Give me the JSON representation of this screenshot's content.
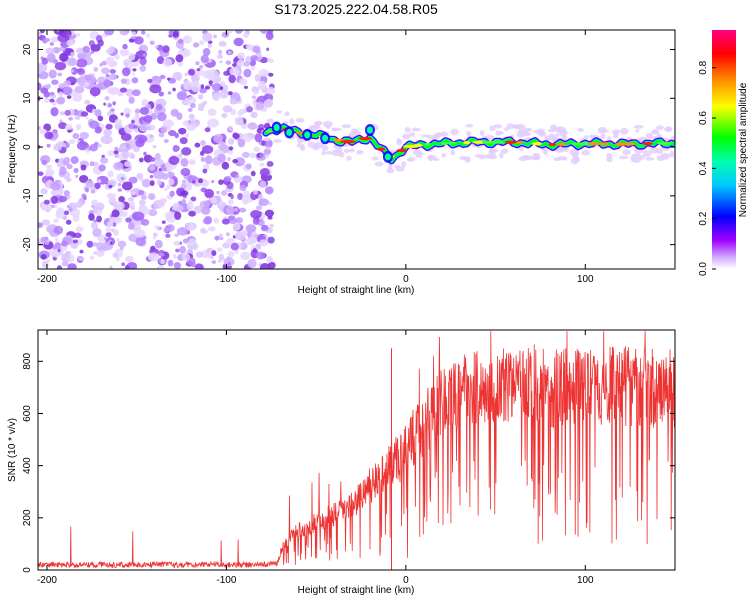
{
  "title": "S173.2025.222.04.58.R05",
  "colors": {
    "snr_line": "#ee3333",
    "spec_low": "#e8d8ff",
    "spec_mid": "#8a2be2",
    "spec_peak": "#ff0000"
  },
  "chart_data": [
    {
      "type": "heatmap",
      "name": "spectrogram",
      "title": "S173.2025.222.04.58.R05",
      "xlabel": "Height of straight line (km)",
      "ylabel": "Frequency (Hz)",
      "xlim": [
        -205,
        150
      ],
      "ylim": [
        -25,
        24
      ],
      "xticks": [
        -200,
        -100,
        0,
        100
      ],
      "xtick_labels": [
        "-200",
        "-100",
        "0",
        "100"
      ],
      "yticks": [
        -20,
        -10,
        0,
        10,
        20
      ],
      "ytick_labels": [
        "-20",
        "-10",
        "0",
        "10",
        "20"
      ],
      "noise_region_km": [
        -205,
        -78
      ],
      "signal_track": [
        {
          "x": -78,
          "y": 3.0
        },
        {
          "x": -70,
          "y": 4.0
        },
        {
          "x": -60,
          "y": 3.0
        },
        {
          "x": -50,
          "y": 2.5
        },
        {
          "x": -40,
          "y": 1.5
        },
        {
          "x": -30,
          "y": 1.0
        },
        {
          "x": -20,
          "y": 2.0
        },
        {
          "x": -15,
          "y": 0.0
        },
        {
          "x": -8,
          "y": -2.5
        },
        {
          "x": 0,
          "y": 0.0
        },
        {
          "x": 10,
          "y": 0.5
        },
        {
          "x": 25,
          "y": 0.8
        },
        {
          "x": 40,
          "y": 1.0
        },
        {
          "x": 60,
          "y": 1.0
        },
        {
          "x": 80,
          "y": 0.5
        },
        {
          "x": 100,
          "y": 0.7
        },
        {
          "x": 120,
          "y": 0.6
        },
        {
          "x": 150,
          "y": 0.8
        }
      ],
      "colorbar": {
        "label": "Normalized spectral amplitude",
        "range": [
          0.0,
          0.95
        ],
        "ticks": [
          0.0,
          0.2,
          0.4,
          0.6,
          0.8
        ],
        "tick_labels": [
          "0.0",
          "0.2",
          "0.4",
          "0.6",
          "0.8"
        ],
        "stops": [
          "#ffffff",
          "#a000ff",
          "#0000ff",
          "#00ffff",
          "#00ff00",
          "#ffff00",
          "#ff8000",
          "#ff0000",
          "#ff0080"
        ]
      }
    },
    {
      "type": "line",
      "name": "snr",
      "xlabel": "Height of straight line (km)",
      "ylabel": "SNR (10 * v/v)",
      "xlim": [
        -205,
        150
      ],
      "ylim": [
        0,
        920
      ],
      "xticks": [
        -200,
        -100,
        0,
        100
      ],
      "xtick_labels": [
        "-200",
        "-100",
        "0",
        "100"
      ],
      "yticks": [
        0,
        200,
        400,
        600,
        800
      ],
      "ytick_labels": [
        "0",
        "200",
        "400",
        "600",
        "800"
      ],
      "series": [
        {
          "name": "SNR",
          "x": [
            -205,
            -190,
            -170,
            -150,
            -130,
            -110,
            -90,
            -80,
            -72,
            -68,
            -60,
            -50,
            -40,
            -30,
            -20,
            -10,
            0,
            5,
            10,
            15,
            20,
            30,
            40,
            60,
            80,
            100,
            120,
            140,
            150
          ],
          "y": [
            20,
            20,
            20,
            20,
            20,
            20,
            20,
            20,
            25,
            90,
            140,
            170,
            200,
            230,
            300,
            360,
            420,
            480,
            520,
            560,
            600,
            640,
            660,
            660,
            650,
            650,
            660,
            650,
            650
          ],
          "spread": [
            20,
            20,
            20,
            20,
            20,
            20,
            20,
            20,
            30,
            80,
            120,
            140,
            170,
            200,
            260,
            320,
            380,
            420,
            440,
            460,
            480,
            500,
            520,
            540,
            560,
            560,
            560,
            560,
            560
          ]
        }
      ]
    }
  ]
}
